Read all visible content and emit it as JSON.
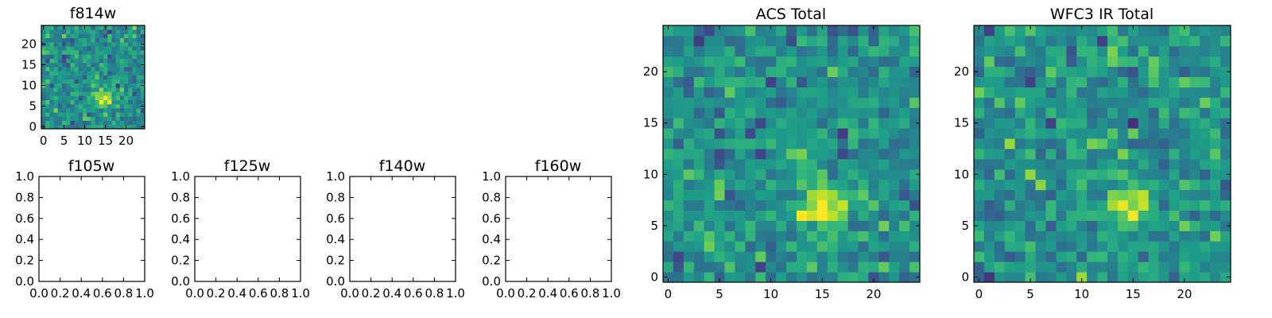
{
  "chart_data": [
    {
      "id": "f814w",
      "type": "heatmap",
      "title": "f814w",
      "colormap": "viridis",
      "grid_size": 25,
      "xticks": [
        "0",
        "5",
        "10",
        "15",
        "20"
      ],
      "yticks": [
        "0",
        "5",
        "10",
        "15",
        "20"
      ],
      "peak": {
        "x": 14.5,
        "y": 7
      }
    },
    {
      "id": "f105w",
      "type": "scatter",
      "title": "f105w",
      "xlim": [
        0,
        1
      ],
      "ylim": [
        0,
        1
      ],
      "xticks": [
        "0.0",
        "0.2",
        "0.4",
        "0.6",
        "0.8",
        "1.0"
      ],
      "yticks": [
        "0.0",
        "0.2",
        "0.4",
        "0.6",
        "0.8",
        "1.0"
      ],
      "values": []
    },
    {
      "id": "f125w",
      "type": "scatter",
      "title": "f125w",
      "xlim": [
        0,
        1
      ],
      "ylim": [
        0,
        1
      ],
      "xticks": [
        "0.0",
        "0.2",
        "0.4",
        "0.6",
        "0.8",
        "1.0"
      ],
      "yticks": [
        "0.0",
        "0.2",
        "0.4",
        "0.6",
        "0.8",
        "1.0"
      ],
      "values": []
    },
    {
      "id": "f140w",
      "type": "scatter",
      "title": "f140w",
      "xlim": [
        0,
        1
      ],
      "ylim": [
        0,
        1
      ],
      "xticks": [
        "0.0",
        "0.2",
        "0.4",
        "0.6",
        "0.8",
        "1.0"
      ],
      "yticks": [
        "0.0",
        "0.2",
        "0.4",
        "0.6",
        "0.8",
        "1.0"
      ],
      "values": []
    },
    {
      "id": "f160w",
      "type": "scatter",
      "title": "f160w",
      "xlim": [
        0,
        1
      ],
      "ylim": [
        0,
        1
      ],
      "xticks": [
        "0.0",
        "0.2",
        "0.4",
        "0.6",
        "0.8",
        "1.0"
      ],
      "yticks": [
        "0.0",
        "0.2",
        "0.4",
        "0.6",
        "0.8",
        "1.0"
      ],
      "values": []
    },
    {
      "id": "acs-total",
      "type": "heatmap",
      "title": "ACS Total",
      "colormap": "viridis",
      "grid_size": 25,
      "xticks": [
        "0",
        "5",
        "10",
        "15",
        "20"
      ],
      "yticks": [
        "0",
        "5",
        "10",
        "15",
        "20"
      ],
      "peak": {
        "x": 15,
        "y": 7
      }
    },
    {
      "id": "wfc3-ir-total",
      "type": "heatmap",
      "title": "WFC3 IR Total",
      "colormap": "viridis",
      "grid_size": 25,
      "xticks": [
        "0",
        "5",
        "10",
        "15",
        "20"
      ],
      "yticks": [
        "0",
        "5",
        "10",
        "15",
        "20"
      ],
      "peak": {
        "x": 15,
        "y": 7
      }
    }
  ]
}
